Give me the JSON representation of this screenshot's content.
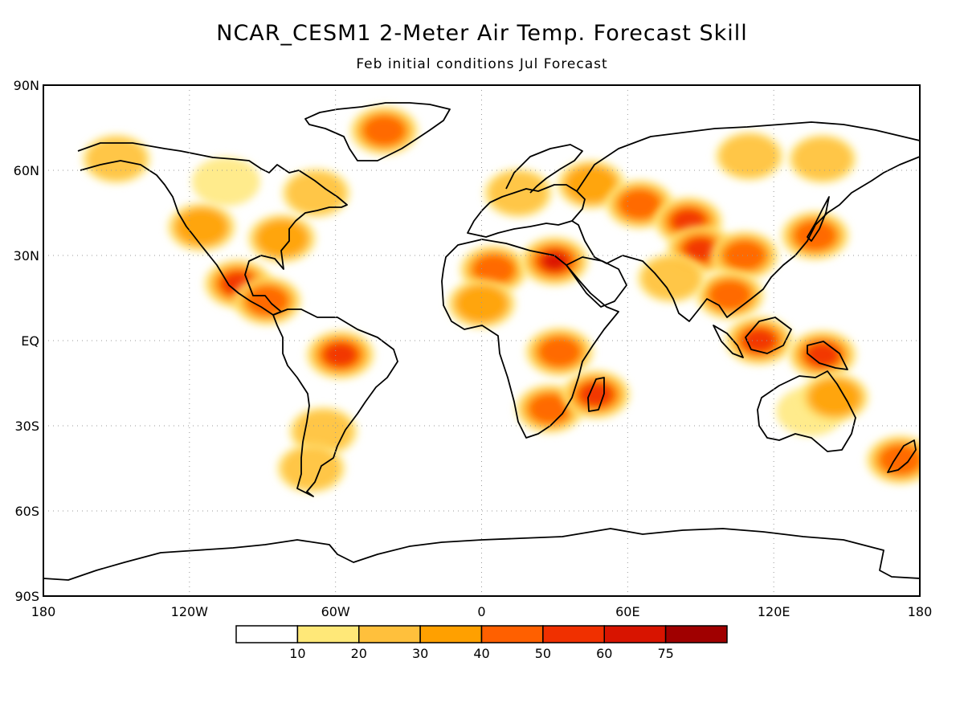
{
  "title": "NCAR_CESM1 2-Meter Air Temp. Forecast Skill",
  "subtitle": "Feb initial conditions  Jul Forecast",
  "map": {
    "lon_range": [
      -180,
      180
    ],
    "lat_range": [
      -90,
      90
    ],
    "lat_ticks": [
      "90N",
      "60N",
      "30N",
      "EQ",
      "30S",
      "60S",
      "90S"
    ],
    "lon_ticks": [
      "180",
      "120W",
      "60W",
      "0",
      "60E",
      "120E",
      "180"
    ],
    "gridlines": "dotted"
  },
  "colorbar": {
    "labels": [
      "10",
      "20",
      "30",
      "40",
      "50",
      "60",
      "75"
    ],
    "colors": [
      "#ffffff",
      "#ffe878",
      "#ffc03c",
      "#ffa000",
      "#ff6000",
      "#f03000",
      "#d81400",
      "#a00000"
    ]
  },
  "skill_regions": [
    {
      "name": "Greenland",
      "lon": -40,
      "lat": 74,
      "level": 4
    },
    {
      "name": "Alaska",
      "lon": -150,
      "lat": 64,
      "level": 2
    },
    {
      "name": "Canada",
      "lon": -105,
      "lat": 56,
      "level": 1
    },
    {
      "name": "Eastern Canada",
      "lon": -68,
      "lat": 52,
      "level": 2
    },
    {
      "name": "Western US",
      "lon": -115,
      "lat": 40,
      "level": 3
    },
    {
      "name": "Eastern US",
      "lon": -82,
      "lat": 36,
      "level": 3
    },
    {
      "name": "Mexico",
      "lon": -100,
      "lat": 20,
      "level": 5
    },
    {
      "name": "Central America",
      "lon": -88,
      "lat": 14,
      "level": 4
    },
    {
      "name": "Amazon",
      "lon": -58,
      "lat": -5,
      "level": 5
    },
    {
      "name": "Southern South America",
      "lon": -65,
      "lat": -32,
      "level": 2
    },
    {
      "name": "Patagonia",
      "lon": -70,
      "lat": -45,
      "level": 2
    },
    {
      "name": "Sahara",
      "lon": 5,
      "lat": 25,
      "level": 4
    },
    {
      "name": "Egypt",
      "lon": 30,
      "lat": 28,
      "level": 6
    },
    {
      "name": "Sahel",
      "lon": 0,
      "lat": 13,
      "level": 3
    },
    {
      "name": "East Africa",
      "lon": 32,
      "lat": -4,
      "level": 4
    },
    {
      "name": "Southern Africa",
      "lon": 28,
      "lat": -24,
      "level": 4
    },
    {
      "name": "Madagascar",
      "lon": 47,
      "lat": -19,
      "level": 5
    },
    {
      "name": "Europe",
      "lon": 15,
      "lat": 52,
      "level": 2
    },
    {
      "name": "Western Russia",
      "lon": 45,
      "lat": 55,
      "level": 3
    },
    {
      "name": "Kazakhstan",
      "lon": 65,
      "lat": 48,
      "level": 4
    },
    {
      "name": "Central Asia",
      "lon": 85,
      "lat": 42,
      "level": 5
    },
    {
      "name": "Tibet",
      "lon": 90,
      "lat": 32,
      "level": 5
    },
    {
      "name": "Siberia",
      "lon": 110,
      "lat": 65,
      "level": 2
    },
    {
      "name": "Eastern Siberia",
      "lon": 140,
      "lat": 64,
      "level": 2
    },
    {
      "name": "China",
      "lon": 108,
      "lat": 30,
      "level": 4
    },
    {
      "name": "Japan",
      "lon": 137,
      "lat": 37,
      "level": 4
    },
    {
      "name": "Indochina",
      "lon": 102,
      "lat": 16,
      "level": 4
    },
    {
      "name": "India",
      "lon": 78,
      "lat": 22,
      "level": 2
    },
    {
      "name": "Borneo",
      "lon": 114,
      "lat": 0,
      "level": 5
    },
    {
      "name": "New Guinea",
      "lon": 140,
      "lat": -5,
      "level": 5
    },
    {
      "name": "Australia",
      "lon": 135,
      "lat": -25,
      "level": 1
    },
    {
      "name": "Northeast Australia",
      "lon": 145,
      "lat": -20,
      "level": 3
    },
    {
      "name": "New Zealand",
      "lon": 172,
      "lat": -42,
      "level": 4
    }
  ]
}
